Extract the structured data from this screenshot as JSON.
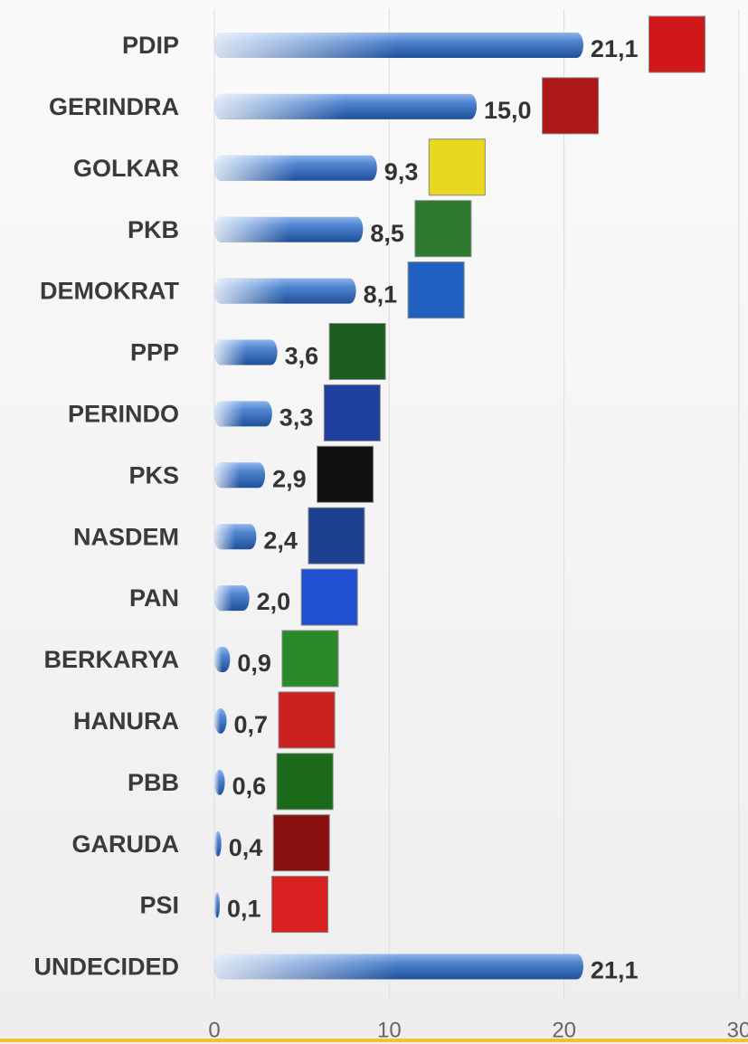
{
  "chart_data": {
    "type": "bar",
    "orientation": "horizontal",
    "categories": [
      "PDIP",
      "GERINDRA",
      "GOLKAR",
      "PKB",
      "DEMOKRAT",
      "PPP",
      "PERINDO",
      "PKS",
      "NASDEM",
      "PAN",
      "BERKARYA",
      "HANURA",
      "PBB",
      "GARUDA",
      "PSI",
      "UNDECIDED"
    ],
    "values": [
      21.1,
      15.0,
      9.3,
      8.5,
      8.1,
      3.6,
      3.3,
      2.9,
      2.4,
      2.0,
      0.9,
      0.7,
      0.6,
      0.4,
      0.1,
      21.1
    ],
    "value_labels": [
      "21,1",
      "15,0",
      "9,3",
      "8,5",
      "8,1",
      "3,6",
      "3,3",
      "2,9",
      "2,4",
      "2,0",
      "0,9",
      "0,7",
      "0,6",
      "0,4",
      "0,1",
      "21,1"
    ],
    "color": "#3a6fc0",
    "xlim": [
      0,
      30
    ],
    "xticks": [
      0,
      10,
      20,
      30
    ],
    "grid": true
  }
}
